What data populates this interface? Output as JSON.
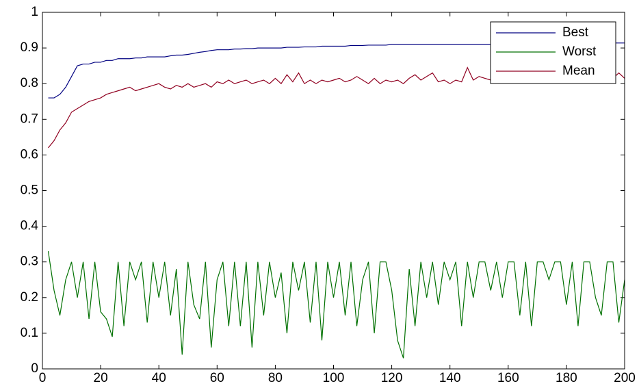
{
  "chart_data": {
    "type": "line",
    "x": [
      2,
      4,
      6,
      8,
      10,
      12,
      14,
      16,
      18,
      20,
      22,
      24,
      26,
      28,
      30,
      32,
      34,
      36,
      38,
      40,
      42,
      44,
      46,
      48,
      50,
      52,
      54,
      56,
      58,
      60,
      62,
      64,
      66,
      68,
      70,
      72,
      74,
      76,
      78,
      80,
      82,
      84,
      86,
      88,
      90,
      92,
      94,
      96,
      98,
      100,
      102,
      104,
      106,
      108,
      110,
      112,
      114,
      116,
      118,
      120,
      122,
      124,
      126,
      128,
      130,
      132,
      134,
      136,
      138,
      140,
      142,
      144,
      146,
      148,
      150,
      152,
      154,
      156,
      158,
      160,
      162,
      164,
      166,
      168,
      170,
      172,
      174,
      176,
      178,
      180,
      182,
      184,
      186,
      188,
      190,
      192,
      194,
      196,
      198,
      200
    ],
    "series": [
      {
        "name": "Best",
        "color": "#000080",
        "values": [
          0.76,
          0.76,
          0.77,
          0.79,
          0.82,
          0.85,
          0.855,
          0.855,
          0.86,
          0.86,
          0.865,
          0.865,
          0.87,
          0.87,
          0.87,
          0.872,
          0.872,
          0.875,
          0.875,
          0.875,
          0.875,
          0.878,
          0.88,
          0.88,
          0.882,
          0.885,
          0.888,
          0.89,
          0.893,
          0.895,
          0.895,
          0.895,
          0.897,
          0.897,
          0.898,
          0.898,
          0.9,
          0.9,
          0.9,
          0.9,
          0.9,
          0.902,
          0.902,
          0.902,
          0.903,
          0.903,
          0.903,
          0.905,
          0.905,
          0.905,
          0.905,
          0.905,
          0.907,
          0.907,
          0.907,
          0.908,
          0.908,
          0.908,
          0.908,
          0.91,
          0.91,
          0.91,
          0.91,
          0.91,
          0.91,
          0.91,
          0.91,
          0.91,
          0.91,
          0.91,
          0.91,
          0.91,
          0.91,
          0.91,
          0.91,
          0.91,
          0.91,
          0.912,
          0.912,
          0.912,
          0.912,
          0.912,
          0.912,
          0.912,
          0.912,
          0.912,
          0.912,
          0.912,
          0.912,
          0.912,
          0.912,
          0.914,
          0.914,
          0.914,
          0.914,
          0.914,
          0.914,
          0.914,
          0.914,
          0.914
        ]
      },
      {
        "name": "Worst",
        "color": "#007000",
        "values": [
          0.33,
          0.22,
          0.15,
          0.25,
          0.3,
          0.2,
          0.3,
          0.14,
          0.3,
          0.16,
          0.14,
          0.09,
          0.3,
          0.12,
          0.3,
          0.25,
          0.3,
          0.13,
          0.3,
          0.2,
          0.3,
          0.15,
          0.28,
          0.04,
          0.3,
          0.18,
          0.14,
          0.3,
          0.06,
          0.25,
          0.3,
          0.12,
          0.3,
          0.12,
          0.3,
          0.06,
          0.3,
          0.15,
          0.3,
          0.2,
          0.27,
          0.1,
          0.3,
          0.22,
          0.3,
          0.13,
          0.3,
          0.08,
          0.3,
          0.2,
          0.3,
          0.15,
          0.3,
          0.12,
          0.25,
          0.3,
          0.1,
          0.3,
          0.3,
          0.22,
          0.08,
          0.03,
          0.28,
          0.12,
          0.3,
          0.2,
          0.3,
          0.18,
          0.3,
          0.25,
          0.3,
          0.12,
          0.3,
          0.2,
          0.3,
          0.3,
          0.22,
          0.3,
          0.2,
          0.3,
          0.3,
          0.15,
          0.3,
          0.12,
          0.3,
          0.3,
          0.25,
          0.3,
          0.3,
          0.18,
          0.3,
          0.12,
          0.3,
          0.3,
          0.2,
          0.15,
          0.3,
          0.3,
          0.13,
          0.25
        ]
      },
      {
        "name": "Mean",
        "color": "#900020",
        "values": [
          0.62,
          0.64,
          0.67,
          0.69,
          0.72,
          0.73,
          0.74,
          0.75,
          0.755,
          0.76,
          0.77,
          0.775,
          0.78,
          0.785,
          0.79,
          0.78,
          0.785,
          0.79,
          0.795,
          0.8,
          0.79,
          0.785,
          0.795,
          0.79,
          0.8,
          0.79,
          0.795,
          0.8,
          0.79,
          0.805,
          0.8,
          0.81,
          0.8,
          0.805,
          0.81,
          0.8,
          0.805,
          0.81,
          0.8,
          0.815,
          0.8,
          0.825,
          0.805,
          0.83,
          0.8,
          0.81,
          0.8,
          0.81,
          0.805,
          0.81,
          0.815,
          0.805,
          0.81,
          0.82,
          0.81,
          0.8,
          0.815,
          0.8,
          0.81,
          0.805,
          0.81,
          0.8,
          0.815,
          0.825,
          0.81,
          0.82,
          0.83,
          0.805,
          0.81,
          0.8,
          0.81,
          0.805,
          0.845,
          0.81,
          0.82,
          0.815,
          0.81,
          0.815,
          0.82,
          0.815,
          0.81,
          0.82,
          0.815,
          0.81,
          0.82,
          0.815,
          0.81,
          0.82,
          0.815,
          0.81,
          0.82,
          0.815,
          0.81,
          0.82,
          0.815,
          0.81,
          0.82,
          0.815,
          0.83,
          0.815
        ]
      }
    ],
    "xlim": [
      0,
      200
    ],
    "xticks": [
      0,
      20,
      40,
      60,
      80,
      100,
      120,
      140,
      160,
      180,
      200
    ],
    "ylim": [
      0,
      1
    ],
    "yticks": [
      0,
      0.1,
      0.2,
      0.3,
      0.4,
      0.5,
      0.6,
      0.7,
      0.8,
      0.9,
      1
    ],
    "grid": false,
    "legend": "top-right"
  }
}
